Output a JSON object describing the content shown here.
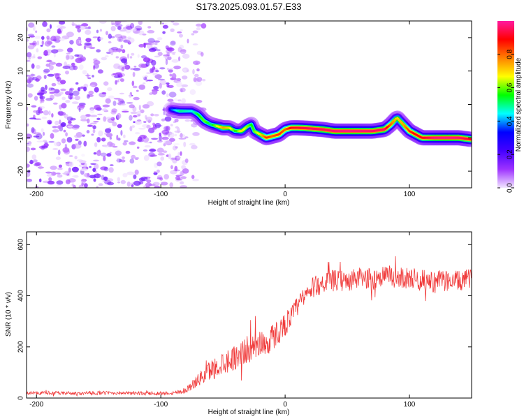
{
  "figure_title": "S173.2025.093.01.57.E33",
  "colors": {
    "snr_line": "#f03a3a",
    "colormap": [
      "#f2e6ff",
      "#9e33ff",
      "#4400ff",
      "#0000ff",
      "#00ffff",
      "#00ff00",
      "#ffff00",
      "#ff8000",
      "#ff0000",
      "#ff1aa0"
    ]
  },
  "chart_data": [
    {
      "type": "heatmap",
      "xlabel": "Height of straight line (km)",
      "ylabel": "Frequency (Hz)",
      "xlim": [
        -208,
        150
      ],
      "ylim": [
        -25,
        25
      ],
      "x_ticks": [
        -200,
        -100,
        0,
        100
      ],
      "y_ticks": [
        -20,
        -10,
        0,
        10,
        20
      ],
      "grid": false,
      "colorbar": {
        "label": "Normalized spectral amplitude",
        "range": [
          0,
          1
        ],
        "ticks": [
          0.0,
          0.2,
          0.4,
          0.6,
          0.8
        ]
      },
      "ridge": {
        "x": [
          -92,
          -85,
          -75,
          -70,
          -65,
          -60,
          -55,
          -50,
          -45,
          -40,
          -35,
          -30,
          -27,
          -25,
          -20,
          -15,
          -10,
          -5,
          0,
          5,
          10,
          20,
          30,
          40,
          50,
          60,
          70,
          80,
          85,
          90,
          95,
          100,
          105,
          110,
          120,
          130,
          140,
          150
        ],
        "freq_hz": [
          -1.5,
          -2,
          -2,
          -3,
          -5,
          -6,
          -6.5,
          -7,
          -7,
          -8,
          -8,
          -6.5,
          -6,
          -8,
          -9,
          -10,
          -9.5,
          -9,
          -7.5,
          -7,
          -7,
          -7.2,
          -7.5,
          -8,
          -8,
          -8,
          -8,
          -7.5,
          -6,
          -4,
          -6,
          -8,
          -9,
          -10,
          -10,
          -10,
          -10,
          -10.5
        ],
        "amplitude": [
          0.35,
          0.5,
          0.45,
          0.55,
          0.6,
          0.5,
          0.65,
          0.75,
          0.7,
          0.55,
          0.7,
          0.6,
          0.55,
          0.6,
          0.7,
          0.85,
          0.8,
          0.85,
          0.8,
          0.9,
          0.92,
          0.95,
          0.95,
          0.97,
          0.98,
          0.97,
          0.96,
          0.95,
          0.8,
          0.7,
          0.75,
          0.85,
          0.9,
          0.9,
          0.97,
          0.98,
          0.97,
          0.9
        ]
      },
      "noise_region_x": [
        -208,
        -80
      ],
      "noise_amplitude_max": 0.18
    },
    {
      "type": "line",
      "xlabel": "Height of straight line (km)",
      "ylabel": "SNR (10 * v/v)",
      "xlim": [
        -208,
        150
      ],
      "ylim": [
        0,
        650
      ],
      "x_ticks": [
        -200,
        -100,
        0,
        100
      ],
      "y_ticks": [
        0,
        200,
        400,
        600
      ],
      "grid": false,
      "series": [
        {
          "x": [
            -208,
            -190,
            -170,
            -150,
            -130,
            -110,
            -90,
            -80,
            -75,
            -70,
            -65,
            -60,
            -55,
            -50,
            -45,
            -40,
            -35,
            -30,
            -25,
            -20,
            -15,
            -10,
            -5,
            0,
            5,
            10,
            15,
            20,
            25,
            30,
            40,
            50,
            60,
            70,
            80,
            90,
            100,
            110,
            120,
            130,
            140,
            150
          ],
          "y": [
            20,
            20,
            18,
            20,
            20,
            18,
            20,
            30,
            50,
            70,
            90,
            110,
            120,
            140,
            150,
            160,
            175,
            190,
            200,
            220,
            210,
            240,
            260,
            290,
            320,
            360,
            390,
            420,
            440,
            450,
            460,
            455,
            470,
            465,
            480,
            470,
            470,
            460,
            455,
            460,
            455,
            470
          ],
          "spread": [
            10,
            12,
            10,
            12,
            10,
            12,
            12,
            20,
            30,
            40,
            60,
            70,
            70,
            80,
            80,
            80,
            90,
            90,
            90,
            90,
            90,
            90,
            80,
            80,
            70,
            70,
            70,
            70,
            70,
            70,
            70,
            70,
            70,
            70,
            70,
            70,
            70,
            70,
            70,
            70,
            70,
            60
          ]
        }
      ]
    }
  ]
}
